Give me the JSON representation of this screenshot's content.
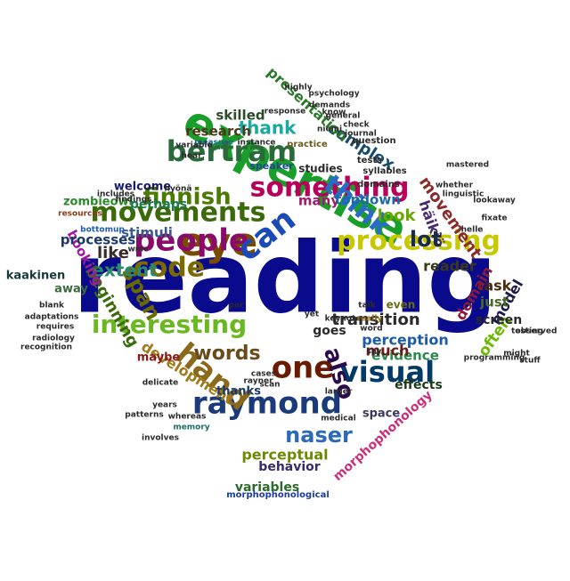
{
  "words": [
    {
      "text": "reading",
      "color": "#0a0a8c"
    },
    {
      "text": "expertise",
      "color": "#1a9e2a"
    },
    {
      "text": "eye",
      "color": "#7a4a00"
    },
    {
      "text": "people",
      "color": "#8a0a6a"
    },
    {
      "text": "code",
      "color": "#7a6a00"
    },
    {
      "text": "can",
      "color": "#1a4ab8"
    },
    {
      "text": "movements",
      "color": "#3a6a0a"
    },
    {
      "text": "something",
      "color": "#b8005a"
    },
    {
      "text": "think",
      "color": "#2a6ac8"
    },
    {
      "text": "processing",
      "color": "#c8c800"
    },
    {
      "text": "bertram",
      "color": "#2a6a3a"
    },
    {
      "text": "raymond",
      "color": "#1a3a7a"
    },
    {
      "text": "hand",
      "color": "#8a6a1a"
    },
    {
      "text": "one",
      "color": "#6a1a00"
    },
    {
      "text": "interesting",
      "color": "#6ab820"
    },
    {
      "text": "visual",
      "color": "#003a6a"
    },
    {
      "text": "also",
      "color": "#2a0a4a"
    },
    {
      "text": "finnish",
      "color": "#4a7a00"
    },
    {
      "text": "words",
      "color": "#6a4a1a"
    },
    {
      "text": "span",
      "color": "#6a6a00"
    },
    {
      "text": "naser",
      "color": "#2a6ab8"
    },
    {
      "text": "thank",
      "color": "#1aa8a0"
    },
    {
      "text": "complex",
      "color": "#1a4a6a"
    },
    {
      "text": "presentation",
      "color": "#2a7a2a"
    },
    {
      "text": "movement",
      "color": "#8a2a2a"
    },
    {
      "text": "häikiö",
      "color": "#4a2a6a"
    },
    {
      "text": "lot",
      "color": "#1a2a4a"
    },
    {
      "text": "look",
      "color": "#6aa800"
    },
    {
      "text": "like",
      "color": "#3a2a2a"
    },
    {
      "text": "extent",
      "color": "#2a8a6a"
    },
    {
      "text": "beginning",
      "color": "#3a6a0a"
    },
    {
      "text": "booking",
      "color": "#a01aa0"
    },
    {
      "text": "processes",
      "color": "#1a3a6a"
    },
    {
      "text": "stimuli",
      "color": "#3a5a8a"
    },
    {
      "text": "perhaps",
      "color": "#1a7a4a"
    },
    {
      "text": "welcome",
      "color": "#1a1a6a"
    },
    {
      "text": "zombieowl",
      "color": "#2a8a2a"
    },
    {
      "text": "research",
      "color": "#4a3a1a"
    },
    {
      "text": "skilled",
      "color": "#2a4a2a"
    },
    {
      "text": "many",
      "color": "#a01a6a"
    },
    {
      "text": "topdown",
      "color": "#1a6aa8"
    },
    {
      "text": "development",
      "color": "#a07a1a"
    },
    {
      "text": "perceptual",
      "color": "#6a8a00"
    },
    {
      "text": "transition",
      "color": "#2a2a2a"
    },
    {
      "text": "perception",
      "color": "#1a5aa8"
    },
    {
      "text": "evidence",
      "color": "#2a8a4a"
    },
    {
      "text": "much",
      "color": "#6a1a1a"
    },
    {
      "text": "task",
      "color": "#4a2a0a"
    },
    {
      "text": "model",
      "color": "#1a1a4a"
    },
    {
      "text": "domain",
      "color": "#8a1a3a"
    },
    {
      "text": "reader",
      "color": "#3a3a1a"
    },
    {
      "text": "just",
      "color": "#4a6a2a"
    },
    {
      "text": "often",
      "color": "#6ab800"
    },
    {
      "text": "screen",
      "color": "#2a2a2a"
    },
    {
      "text": "morphophonology",
      "color": "#c8307a"
    },
    {
      "text": "behavior",
      "color": "#3a2a6a"
    },
    {
      "text": "variables",
      "color": "#2a6a2a"
    },
    {
      "text": "goes",
      "color": "#2a2a2a"
    },
    {
      "text": "effects",
      "color": "#1a3a1a"
    },
    {
      "text": "space",
      "color": "#3a3a5a"
    },
    {
      "text": "thanks",
      "color": "#1a3a6a"
    },
    {
      "text": "maybe",
      "color": "#8a1a1a"
    },
    {
      "text": "kaakinen",
      "color": "#1a3a3a"
    },
    {
      "text": "away",
      "color": "#3a6a3a"
    },
    {
      "text": "even",
      "color": "#6a6a1a"
    },
    {
      "text": "studies",
      "color": "#2a2a2a"
    },
    {
      "text": "speaker",
      "color": "#1a4a8a"
    },
    {
      "text": "tests",
      "color": "#2a2a2a"
    },
    {
      "text": "domains",
      "color": "#2a2a2a"
    },
    {
      "text": "syllables",
      "color": "#2a2a2a"
    },
    {
      "text": "question",
      "color": "#2a2a2a"
    },
    {
      "text": "instance",
      "color": "#2a2a2a"
    },
    {
      "text": "practice",
      "color": "#6a5a1a"
    },
    {
      "text": "measure",
      "color": "#1a6a8a"
    },
    {
      "text": "includes",
      "color": "#2a2a2a"
    },
    {
      "text": "findings",
      "color": "#2a2a2a"
    },
    {
      "text": "memory",
      "color": "#1a6a6a"
    },
    {
      "text": "involves",
      "color": "#2a2a2a"
    },
    {
      "text": "whereas",
      "color": "#2a2a2a"
    },
    {
      "text": "patterns",
      "color": "#2a2a2a"
    },
    {
      "text": "years",
      "color": "#2a2a2a"
    },
    {
      "text": "delicate",
      "color": "#2a2a2a"
    },
    {
      "text": "scan",
      "color": "#2a2a2a"
    },
    {
      "text": "cases",
      "color": "#2a2a2a"
    },
    {
      "text": "word",
      "color": "#2a2a2a"
    },
    {
      "text": "say",
      "color": "#2a2a2a"
    },
    {
      "text": "talk",
      "color": "#2a2a2a"
    },
    {
      "text": "keynote",
      "color": "#2a2a2a"
    },
    {
      "text": "really",
      "color": "#8a6a1a"
    },
    {
      "text": "larger",
      "color": "#2a2a2a"
    },
    {
      "text": "medical",
      "color": "#2a2a2a"
    },
    {
      "text": "programming",
      "color": "#2a2a2a"
    },
    {
      "text": "testing",
      "color": "#2a2a2a"
    },
    {
      "text": "might",
      "color": "#2a2a2a"
    },
    {
      "text": "stuff",
      "color": "#2a2a2a"
    },
    {
      "text": "observed",
      "color": "#2a2a2a"
    },
    {
      "text": "linguistic",
      "color": "#2a2a2a"
    },
    {
      "text": "whether",
      "color": "#2a2a2a"
    },
    {
      "text": "mastered",
      "color": "#2a2a2a"
    },
    {
      "text": "lookaway",
      "color": "#2a2a2a"
    },
    {
      "text": "helle",
      "color": "#2a2a2a"
    },
    {
      "text": "fixate",
      "color": "#2a2a2a"
    },
    {
      "text": "morphophonological",
      "color": "#1a3aa8"
    },
    {
      "text": "adaptations",
      "color": "#2a2a2a"
    },
    {
      "text": "requires",
      "color": "#2a2a2a"
    },
    {
      "text": "radiology",
      "color": "#2a2a2a"
    },
    {
      "text": "recognition",
      "color": "#2a2a2a"
    },
    {
      "text": "blank",
      "color": "#2a2a2a"
    },
    {
      "text": "resources",
      "color": "#8a3a1a"
    },
    {
      "text": "bottomup",
      "color": "#1a5ab8"
    },
    {
      "text": "psychology",
      "color": "#2a2a2a"
    },
    {
      "text": "journal",
      "color": "#2a2a2a"
    },
    {
      "text": "check",
      "color": "#2a2a2a"
    },
    {
      "text": "know",
      "color": "#2a2a2a"
    },
    {
      "text": "general",
      "color": "#2a2a2a"
    },
    {
      "text": "hyönä",
      "color": "#2a2a2a"
    },
    {
      "text": "variable",
      "color": "#2a2a2a"
    },
    {
      "text": "wmc",
      "color": "#2a2a2a"
    },
    {
      "text": "per",
      "color": "#2a2a2a"
    },
    {
      "text": "rayner",
      "color": "#2a2a2a"
    },
    {
      "text": "hear",
      "color": "#2a2a2a"
    },
    {
      "text": "demands",
      "color": "#2a2a2a"
    },
    {
      "text": "niemi",
      "color": "#2a2a2a"
    },
    {
      "text": "response",
      "color": "#2a2a2a"
    },
    {
      "text": "highly",
      "color": "#2a2a2a"
    },
    {
      "text": "yet",
      "color": "#2a2a2a"
    }
  ]
}
